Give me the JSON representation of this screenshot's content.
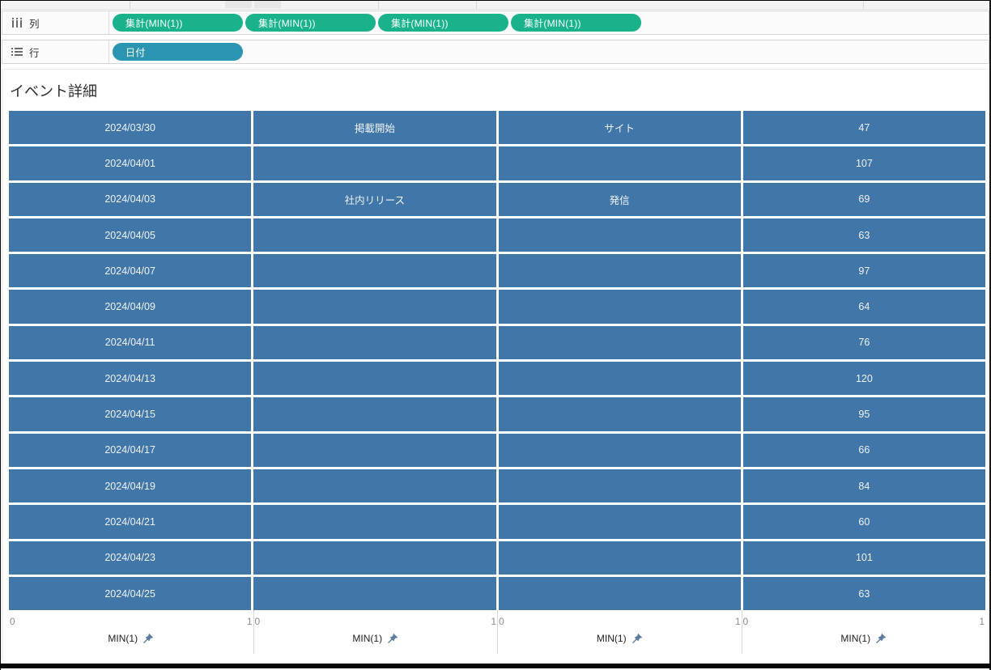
{
  "top_shelves": {
    "columns_shelf": {
      "label": "列",
      "pills": [
        "集計(MIN(1))",
        "集計(MIN(1))",
        "集計(MIN(1))",
        "集計(MIN(1))"
      ]
    },
    "rows_shelf": {
      "label": "行",
      "pills": [
        "日付"
      ]
    }
  },
  "sheet": {
    "title": "イベント詳細"
  },
  "chart_data": {
    "type": "table",
    "title": "イベント詳細",
    "rows": [
      [
        "2024/03/30",
        "掲載開始",
        "サイト",
        "47"
      ],
      [
        "2024/04/01",
        "",
        "",
        "107"
      ],
      [
        "2024/04/03",
        "社内リリース",
        "発信",
        "69"
      ],
      [
        "2024/04/05",
        "",
        "",
        "63"
      ],
      [
        "2024/04/07",
        "",
        "",
        "97"
      ],
      [
        "2024/04/09",
        "",
        "",
        "64"
      ],
      [
        "2024/04/11",
        "",
        "",
        "76"
      ],
      [
        "2024/04/13",
        "",
        "",
        "120"
      ],
      [
        "2024/04/15",
        "",
        "",
        "95"
      ],
      [
        "2024/04/17",
        "",
        "",
        "66"
      ],
      [
        "2024/04/19",
        "",
        "",
        "84"
      ],
      [
        "2024/04/21",
        "",
        "",
        "60"
      ],
      [
        "2024/04/23",
        "",
        "",
        "101"
      ],
      [
        "2024/04/25",
        "",
        "",
        "63"
      ]
    ],
    "axes": {
      "tick_min": "0",
      "tick_max": "1",
      "axis_title": "MIN(1)",
      "pane_count": 4,
      "xlim": [
        0,
        1
      ]
    }
  },
  "colors": {
    "pill_green": "#19b28b",
    "pill_teal": "#2b95b1",
    "bar_blue": "#4076a8",
    "axis_tick_gray": "#8d8d8d",
    "pin_blue": "#5b7c9e"
  }
}
